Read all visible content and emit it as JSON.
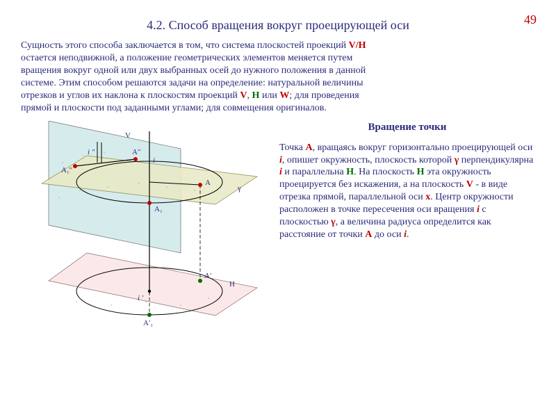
{
  "page_number_color": "#c00000",
  "page_number": "49",
  "title": "4.2. Способ вращения вокруг проецирующей оси",
  "title_color": "#2a2a7a",
  "intro": {
    "text_color": "#2a2a7a",
    "lines": [
      "Сущность этого способа заключается в том, что система плоскостей проекций <span class='b c-red'>V/H</span>",
      "остается неподвижной, а положение геометрических элементов меняется путем",
      " вращения вокруг одной или двух выбранных осей до нужного положения в данной",
      "системе. Этим способом решаются задачи на определение: натуральной величины",
      "отрезков и углов их наклона к плоскостям проекций <span class='b c-red'>V</span>, <span class='b c-green'>H</span> или <span class='b c-red'>W</span>;   для проведения",
      "прямой и плоскости под   заданными углами; для совмещения оригиналов."
    ]
  },
  "subhead": "Вращение точки",
  "body": {
    "text_color": "#2a2a7a",
    "html": " Точка <span class='b c-red'>А</span>, вращаясь вокруг горизонтально проецирующей оси <span class='b i c-red'>i</span>, опишет окружность, плоскость которой <span class='b c-red'>γ</span>  перпендикулярна <span class='b i c-red'>i</span> и параллельна <span class='b c-green'>H</span>. На плоскость <span class='b c-green'>H</span> эта окружность проецируется без искажения, а на плоскость <span class='b c-red'>V</span> - в виде отрезка прямой, параллельной оси <span class='b c-red'>x</span>. Центр окружности расположен в точке пересечения оси вращения <span class='b i c-red'>i</span> с плоскостью <span class='b c-red'>γ</span>, а величина радиуса определится как расстояние от точки <span class='b c-red'>А</span>  до оси <span class='b i c-red'>i</span>."
  },
  "figure": {
    "type": "diagram",
    "background": "#ffffff",
    "v_plane_fill": "#d6ecec",
    "h_plane_fill": "#fbe9e9",
    "gamma_plane_fill": "#e9e9c8",
    "edge_color": "#6a6a6a",
    "axis_color": "#000000",
    "circle_color": "#000000",
    "point_red": "#c00000",
    "point_green": "#006c00",
    "label_font": "Times New Roman",
    "label_size": 10,
    "labels": {
      "V": "V",
      "H": "H",
      "gamma": "γ",
      "i": "i",
      "i1": "i ʹ",
      "i2": "i ʺ",
      "A": "А",
      "A1": "А₁",
      "A2": "Аʺ",
      "A12": "А₁ʺ",
      "Ap": "Аʹ",
      "A1p": "Аʹ₁"
    }
  }
}
